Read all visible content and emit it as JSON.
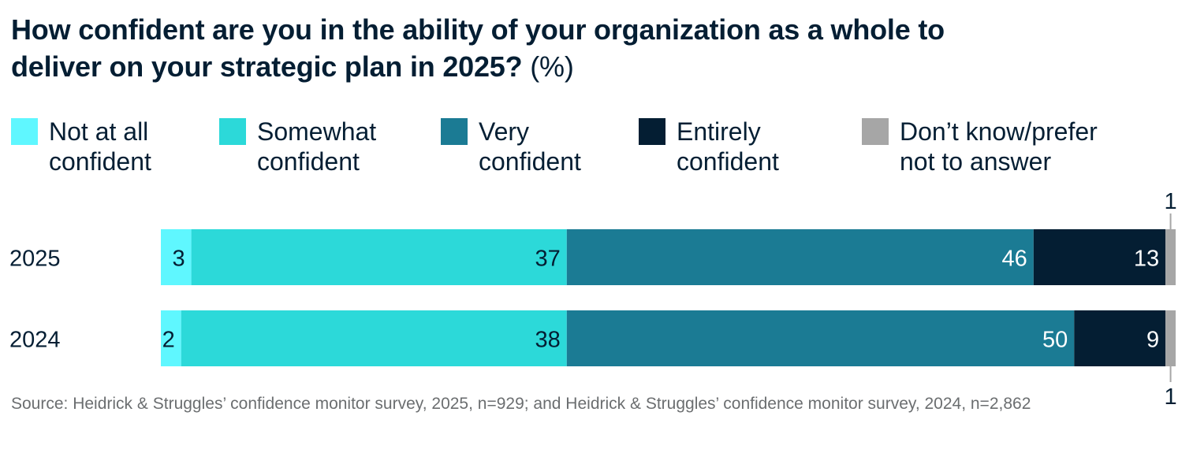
{
  "title": {
    "bold_text": "How confident are you in the ability of your organization as a whole to deliver on your strategic plan in 2025?",
    "unit_text": "(%)"
  },
  "chart_data": {
    "type": "bar",
    "orientation": "horizontal",
    "stacked": true,
    "categories": [
      "2025",
      "2024"
    ],
    "series": [
      {
        "name": "Not at all confident",
        "color": "#5ff7ff",
        "values": [
          3,
          2
        ],
        "labels": [
          "3",
          "2"
        ],
        "label_color": "#041e33"
      },
      {
        "name": "Somewhat confident",
        "color": "#2cd9d9",
        "values": [
          37,
          38
        ],
        "labels": [
          "37",
          "38"
        ],
        "label_color": "#041e33"
      },
      {
        "name": "Very confident",
        "color": "#1b7b94",
        "values": [
          46,
          50
        ],
        "labels": [
          "46",
          "50"
        ],
        "label_color": "#ffffff"
      },
      {
        "name": "Entirely confident",
        "color": "#041e33",
        "values": [
          13,
          9
        ],
        "labels": [
          "13",
          "9"
        ],
        "label_color": "#ffffff"
      },
      {
        "name": "Don’t know/prefer not to answer",
        "color": "#a6a6a6",
        "values": [
          1,
          1
        ],
        "labels": [
          "1",
          "1"
        ],
        "label_color": "#041e33",
        "label_placement": "outside"
      }
    ],
    "legend": {
      "position": "top",
      "items": [
        {
          "label": "Not at all\nconfident",
          "color": "#5ff7ff"
        },
        {
          "label": "Somewhat\nconfident",
          "color": "#2cd9d9"
        },
        {
          "label": "Very\nconfident",
          "color": "#1b7b94"
        },
        {
          "label": "Entirely\nconfident",
          "color": "#041e33"
        },
        {
          "label": "Don’t know/prefer\nnot to answer",
          "color": "#a6a6a6"
        }
      ]
    },
    "xlim": [
      0,
      100
    ],
    "xlabel": "",
    "ylabel": "",
    "grid": false
  },
  "source": "Source: Heidrick & Struggles’ confidence monitor survey, 2025, n=929; and Heidrick & Struggles’ confidence monitor survey, 2024, n=2,862"
}
